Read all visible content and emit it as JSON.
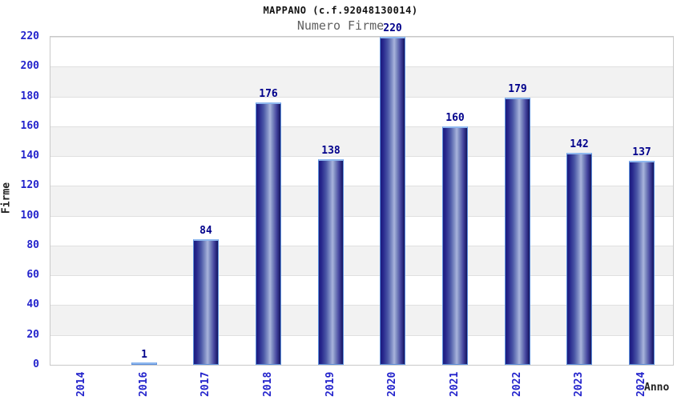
{
  "chart_data": {
    "type": "bar",
    "title": "MAPPANO (c.f.92048130014)",
    "subtitle": "Numero Firme",
    "xlabel": "Anno",
    "ylabel": "Firme",
    "categories": [
      "2014",
      "2016",
      "2017",
      "2018",
      "2019",
      "2020",
      "2021",
      "2022",
      "2023",
      "2024"
    ],
    "values": [
      0,
      1,
      84,
      176,
      138,
      220,
      160,
      179,
      142,
      137
    ],
    "value_labels": [
      "",
      "1",
      "84",
      "176",
      "138",
      "220",
      "160",
      "179",
      "142",
      "137"
    ],
    "ylim": [
      0,
      220
    ],
    "yticks": [
      0,
      20,
      40,
      60,
      80,
      100,
      120,
      140,
      160,
      180,
      200,
      220
    ],
    "grid": "horizontal-bands",
    "legend": "none",
    "colors": {
      "bar_edge_dark": "#1c1c7e",
      "bar_center_light": "#a9b4dc",
      "bar_border": "#5c8fdc",
      "tick_label": "#2424cc",
      "value_label": "#00008b",
      "band_gray": "#f2f2f2",
      "gridline": "#e0e0e0",
      "plot_border": "#c9c9c9",
      "title": "#111111",
      "subtitle": "#606060"
    }
  }
}
